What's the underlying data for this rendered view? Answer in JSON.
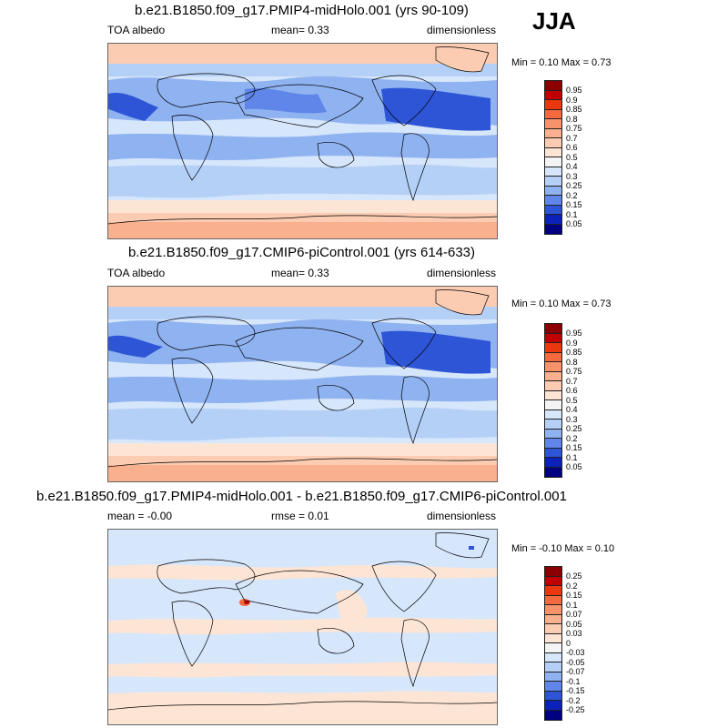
{
  "season": "JJA",
  "panels": [
    {
      "title": "b.e21.B1850.f09_g17.PMIP4-midHolo.001 (yrs 90-109)",
      "left_label": "TOA albedo",
      "center_label": "mean=   0.33",
      "right_label": "dimensionless",
      "minmax": "Min =   0.10 Max =   0.73",
      "colorbar": {
        "labels": [
          "0.95",
          "0.9",
          "0.85",
          "0.8",
          "0.75",
          "0.7",
          "0.6",
          "0.5",
          "0.4",
          "0.3",
          "0.25",
          "0.2",
          "0.15",
          "0.1",
          "0.05"
        ],
        "colors": [
          "#8b0000",
          "#c00000",
          "#e8390e",
          "#f26a3d",
          "#f7926a",
          "#f9b08e",
          "#fbccb2",
          "#fde5d6",
          "#f4f4f4",
          "#d6e6fb",
          "#b5d0f7",
          "#8fb2f0",
          "#5f86e8",
          "#2e55d6",
          "#0a22b8",
          "#000080"
        ]
      }
    },
    {
      "title": "b.e21.B1850.f09_g17.CMIP6-piControl.001 (yrs 614-633)",
      "left_label": "TOA albedo",
      "center_label": "mean=   0.33",
      "right_label": "dimensionless",
      "minmax": "Min =   0.10 Max =   0.73",
      "colorbar": {
        "labels": [
          "0.95",
          "0.9",
          "0.85",
          "0.8",
          "0.75",
          "0.7",
          "0.6",
          "0.5",
          "0.4",
          "0.3",
          "0.25",
          "0.2",
          "0.15",
          "0.1",
          "0.05"
        ],
        "colors": [
          "#8b0000",
          "#c00000",
          "#e8390e",
          "#f26a3d",
          "#f7926a",
          "#f9b08e",
          "#fbccb2",
          "#fde5d6",
          "#f4f4f4",
          "#d6e6fb",
          "#b5d0f7",
          "#8fb2f0",
          "#5f86e8",
          "#2e55d6",
          "#0a22b8",
          "#000080"
        ]
      }
    },
    {
      "title": "b.e21.B1850.f09_g17.PMIP4-midHolo.001 - b.e21.B1850.f09_g17.CMIP6-piControl.001",
      "left_label": "mean =  -0.00",
      "center_label": "rmse =   0.01",
      "right_label": "dimensionless",
      "minmax": "Min =  -0.10 Max =   0.10",
      "colorbar": {
        "labels": [
          "0.25",
          "0.2",
          "0.15",
          "0.1",
          "0.07",
          "0.05",
          "0.03",
          "0",
          "-0.03",
          "-0.05",
          "-0.07",
          "-0.1",
          "-0.15",
          "-0.2",
          "-0.25"
        ],
        "colors": [
          "#8b0000",
          "#c00000",
          "#e8390e",
          "#f26a3d",
          "#f7926a",
          "#f9b08e",
          "#fbccb2",
          "#fde5d6",
          "#f4f4f4",
          "#d6e6fb",
          "#b5d0f7",
          "#8fb2f0",
          "#5f86e8",
          "#2e55d6",
          "#0a22b8",
          "#000080"
        ]
      }
    }
  ]
}
